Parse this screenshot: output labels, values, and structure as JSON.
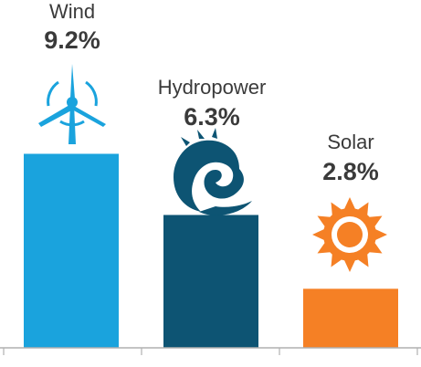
{
  "chart_data": {
    "type": "bar",
    "categories": [
      "Wind",
      "Hydropower",
      "Solar"
    ],
    "values": [
      9.2,
      6.3,
      2.8
    ],
    "value_labels": [
      "9.2%",
      "6.3%",
      "2.8%"
    ],
    "unit": "%",
    "title": "",
    "xlabel": "",
    "ylabel": "",
    "ylim": [
      0,
      10
    ],
    "grid": false,
    "legend": "none",
    "icons": [
      "wind-turbine-icon",
      "wave-icon",
      "sun-icon"
    ],
    "colors": [
      "#1aa3dd",
      "#0d5473",
      "#f58025"
    ],
    "axis_color": "#b0b0b0"
  }
}
